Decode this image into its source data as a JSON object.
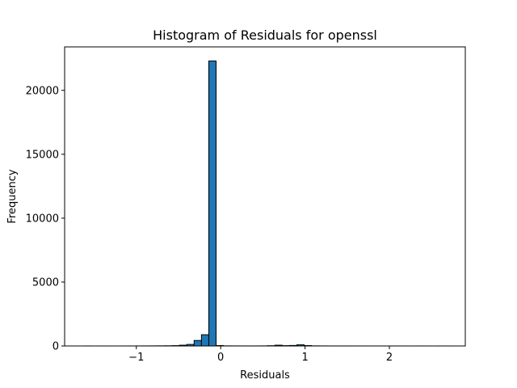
{
  "chart_data": {
    "type": "bar",
    "title": "Histogram of Residuals for openssl",
    "xlabel": "Residuals",
    "ylabel": "Frequency",
    "xlim": [
      -1.85,
      2.9
    ],
    "ylim": [
      0,
      23400
    ],
    "xticks": [
      -1,
      0,
      1,
      2
    ],
    "xtick_labels": [
      "−1",
      "0",
      "1",
      "2"
    ],
    "yticks": [
      0,
      5000,
      10000,
      15000,
      20000
    ],
    "ytick_labels": [
      "0",
      "5000",
      "10000",
      "15000",
      "20000"
    ],
    "grid": false,
    "bin_edges": [
      -1.62,
      -1.533,
      -1.446,
      -1.359,
      -1.272,
      -1.185,
      -1.098,
      -1.011,
      -0.924,
      -0.837,
      -0.75,
      -0.663,
      -0.576,
      -0.489,
      -0.402,
      -0.315,
      -0.228,
      -0.141,
      -0.054,
      0.033,
      0.12,
      0.207,
      0.294,
      0.381,
      0.468,
      0.555,
      0.642,
      0.729,
      0.816,
      0.903,
      0.99,
      1.077,
      1.164,
      1.251,
      1.338,
      1.425,
      1.512,
      1.599,
      1.686,
      1.773,
      1.86,
      1.947,
      2.034,
      2.121,
      2.208,
      2.295,
      2.382,
      2.469,
      2.556,
      2.643,
      2.73
    ],
    "counts": [
      2,
      0,
      1,
      0,
      0,
      1,
      2,
      3,
      5,
      7,
      10,
      15,
      25,
      60,
      120,
      430,
      880,
      22300,
      30,
      8,
      5,
      4,
      3,
      4,
      6,
      20,
      60,
      25,
      40,
      90,
      30,
      8,
      5,
      3,
      2,
      2,
      2,
      1,
      1,
      1,
      1,
      1,
      1,
      1,
      0,
      1,
      1,
      0,
      1,
      1
    ],
    "bar_color": "#1f77b4",
    "edge_color": "#000000"
  }
}
